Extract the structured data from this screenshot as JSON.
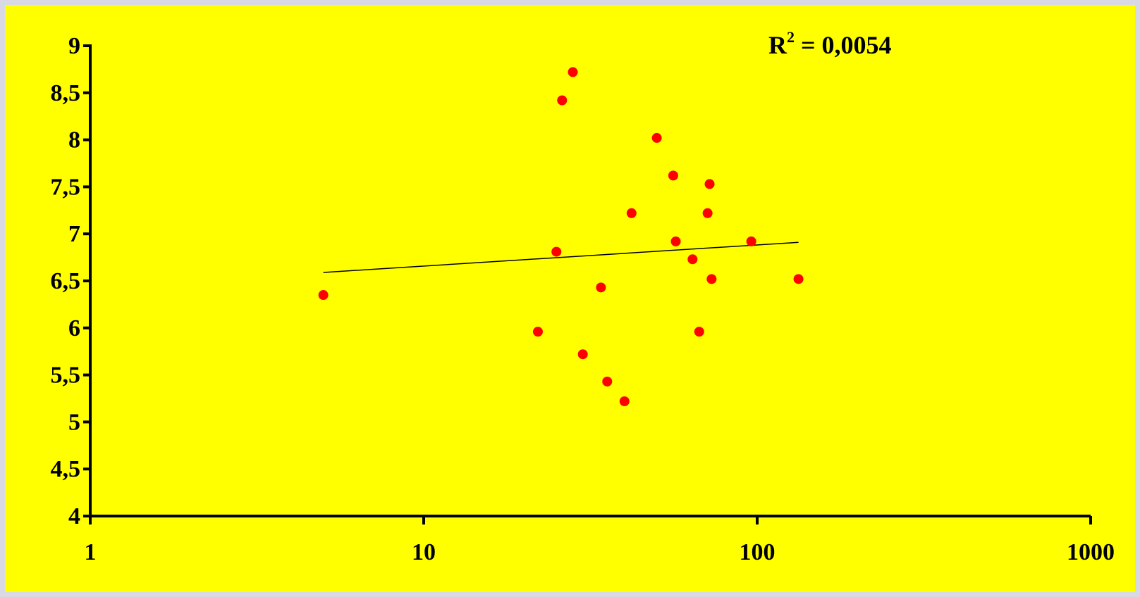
{
  "chart_data": {
    "type": "scatter",
    "title": "",
    "xlabel": "",
    "ylabel": "",
    "x_scale": "log",
    "xlim": [
      1,
      1000
    ],
    "ylim": [
      4,
      9
    ],
    "x_ticks": [
      1,
      10,
      100,
      1000
    ],
    "x_tick_labels": [
      "1",
      "10",
      "100",
      "1000"
    ],
    "y_ticks": [
      4,
      4.5,
      5,
      5.5,
      6,
      6.5,
      7,
      7.5,
      8,
      8.5,
      9
    ],
    "y_tick_labels": [
      "4",
      "4,5",
      "5",
      "5,5",
      "6",
      "6,5",
      "7",
      "7,5",
      "8",
      "8,5",
      "9"
    ],
    "grid": false,
    "legend": "none",
    "series": [
      {
        "points": [
          {
            "x": 5,
            "y": 6.35
          },
          {
            "x": 22,
            "y": 5.96
          },
          {
            "x": 25,
            "y": 6.81
          },
          {
            "x": 26,
            "y": 8.42
          },
          {
            "x": 28,
            "y": 8.72
          },
          {
            "x": 30,
            "y": 5.72
          },
          {
            "x": 34,
            "y": 6.43
          },
          {
            "x": 35.5,
            "y": 5.43
          },
          {
            "x": 40,
            "y": 5.22
          },
          {
            "x": 42,
            "y": 7.22
          },
          {
            "x": 50,
            "y": 8.02
          },
          {
            "x": 56,
            "y": 7.62
          },
          {
            "x": 57,
            "y": 6.92
          },
          {
            "x": 64,
            "y": 6.73
          },
          {
            "x": 67,
            "y": 5.96
          },
          {
            "x": 71,
            "y": 7.22
          },
          {
            "x": 72,
            "y": 7.53
          },
          {
            "x": 73,
            "y": 6.52
          },
          {
            "x": 96,
            "y": 6.92
          },
          {
            "x": 133,
            "y": 6.52
          }
        ]
      }
    ],
    "trendline": {
      "type": "logarithmic",
      "x_range": [
        5,
        133
      ],
      "y_start": 6.59,
      "y_end": 6.91
    },
    "annotations": {
      "r2_prefix": "R",
      "r2_exponent": "2",
      "r2_suffix": " = 0,0054"
    },
    "colors": {
      "background": "#ffff00",
      "outer": "#d9d9e6",
      "points": "#ff0000",
      "axes": "#000000",
      "trendline": "#000000"
    }
  }
}
